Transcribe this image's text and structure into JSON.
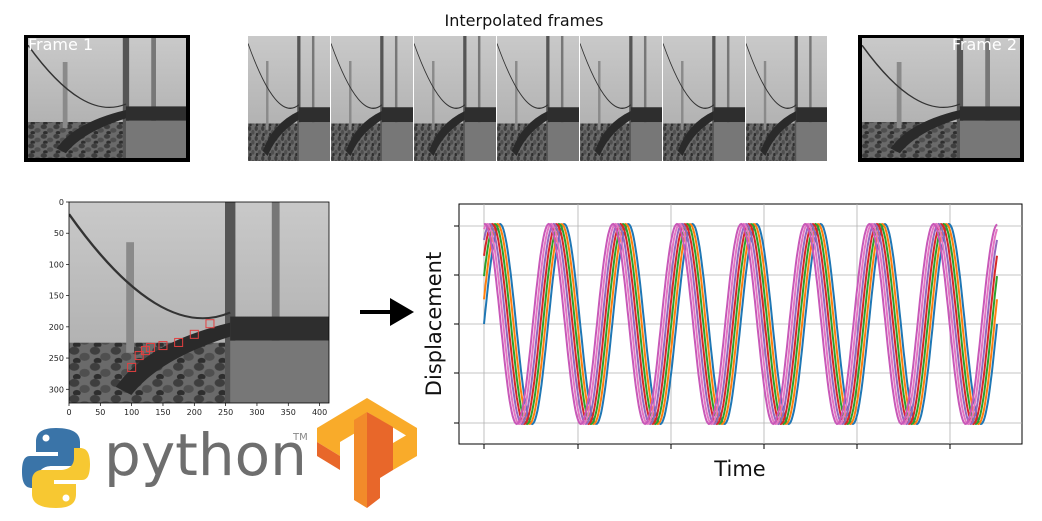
{
  "header": {
    "title": "Interpolated frames"
  },
  "frames": {
    "start_label": "Frame 1",
    "end_label": "Frame 2",
    "interpolated_count": 7
  },
  "tracking_image": {
    "x_ticks": [
      "0",
      "50",
      "100",
      "150",
      "200",
      "250",
      "300",
      "350",
      "400"
    ],
    "y_ticks": [
      "0",
      "50",
      "100",
      "150",
      "200",
      "250",
      "300"
    ],
    "marker_color": "#e34040"
  },
  "logos": {
    "python_word": "python",
    "python_tm": "TM"
  },
  "colors": {
    "tf_orange_light": "#f9ab2a",
    "tf_orange_dark": "#e8672a",
    "py_blue": "#3a74a8",
    "py_yellow": "#f7c832"
  },
  "chart_data": {
    "type": "line",
    "xlabel": "Time",
    "ylabel": "Displacement",
    "grid": true,
    "cycles": 8,
    "series": [
      {
        "color": "#1f77b4",
        "phase": 0.0
      },
      {
        "color": "#ff7f0e",
        "phase": 0.25
      },
      {
        "color": "#2ca02c",
        "phase": 0.5
      },
      {
        "color": "#d62728",
        "phase": 0.75
      },
      {
        "color": "#9467bd",
        "phase": 1.0
      },
      {
        "color": "#e377c2",
        "phase": 1.25
      },
      {
        "color": "#c858b8",
        "phase": 1.5
      }
    ]
  }
}
